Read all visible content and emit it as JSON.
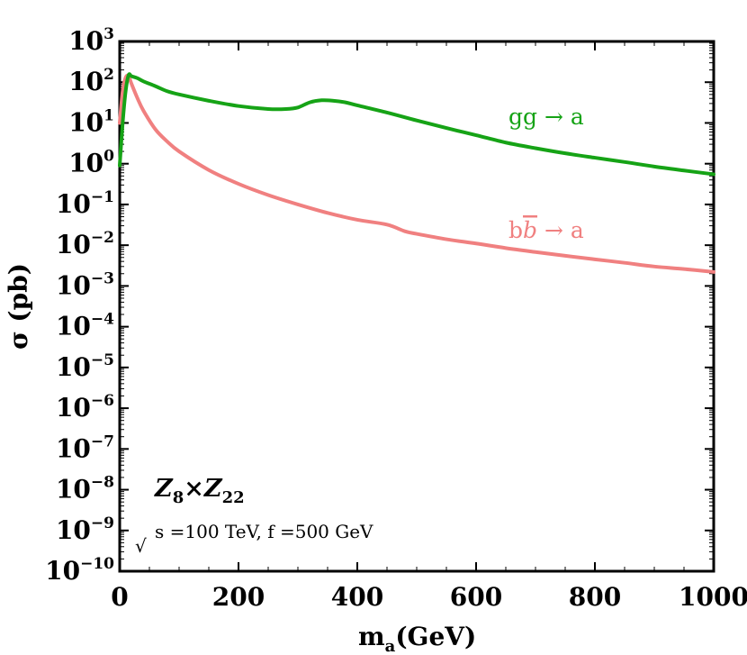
{
  "chart_data": {
    "type": "line",
    "xlabel": "m_a(GeV)",
    "xlabel_main": "m",
    "xlabel_sub": "a",
    "xlabel_tail": "(GeV)",
    "ylabel": "σ (pb)",
    "xlim": [
      0,
      1000
    ],
    "ylim_log10": [
      -10,
      3
    ],
    "y_scale": "log",
    "x_ticks": [
      0,
      200,
      400,
      600,
      800,
      1000
    ],
    "x_tick_labels": [
      "0",
      "200",
      "400",
      "600",
      "800",
      "1000"
    ],
    "y_tick_exponents": [
      3,
      2,
      1,
      0,
      -1,
      -2,
      -3,
      -4,
      -5,
      -6,
      -7,
      -8,
      -9,
      -10
    ],
    "y_tick_base": "10",
    "y_tick_exponent_labels": [
      "3",
      "2",
      "1",
      "0",
      "−1",
      "−2",
      "−3",
      "−4",
      "−5",
      "−6",
      "−7",
      "−8",
      "−9",
      "−10"
    ],
    "series": [
      {
        "name": "gg → a",
        "label": "gg → a",
        "color": "#16a316",
        "x": [
          0,
          5,
          10,
          15,
          20,
          30,
          40,
          60,
          80,
          100,
          150,
          200,
          250,
          280,
          300,
          320,
          340,
          360,
          380,
          400,
          450,
          500,
          550,
          600,
          650,
          700,
          750,
          800,
          850,
          900,
          950,
          1000
        ],
        "y": [
          0.9,
          10,
          60,
          150,
          140,
          125,
          105,
          80,
          60,
          50,
          35,
          26,
          22,
          22,
          24,
          32,
          36,
          35,
          32,
          27,
          18,
          11.5,
          7.5,
          5,
          3.3,
          2.4,
          1.8,
          1.4,
          1.1,
          0.85,
          0.68,
          0.55
        ]
      },
      {
        "name": "b b̄ → a",
        "label_prefix": "b",
        "label_bar": "b",
        "label_suffix": " → a",
        "color": "#f08080",
        "x": [
          0,
          5,
          10,
          15,
          20,
          30,
          40,
          60,
          80,
          100,
          150,
          200,
          250,
          300,
          350,
          400,
          450,
          480,
          500,
          550,
          600,
          650,
          700,
          750,
          800,
          850,
          900,
          950,
          1000
        ],
        "y": [
          10,
          60,
          130,
          140,
          90,
          40,
          20,
          7,
          3.5,
          2,
          0.7,
          0.32,
          0.17,
          0.1,
          0.062,
          0.042,
          0.032,
          0.022,
          0.019,
          0.014,
          0.011,
          0.0085,
          0.0068,
          0.0055,
          0.0045,
          0.0037,
          0.003,
          0.0026,
          0.0022
        ]
      }
    ],
    "annotations": {
      "model_Z1": "Z",
      "model_Z1_sub": "8",
      "model_times": "×",
      "model_Z2": "Z",
      "model_Z2_sub": "22",
      "params_sqrt": "√",
      "params_text": "s =100 TeV, f =500 GeV"
    }
  }
}
